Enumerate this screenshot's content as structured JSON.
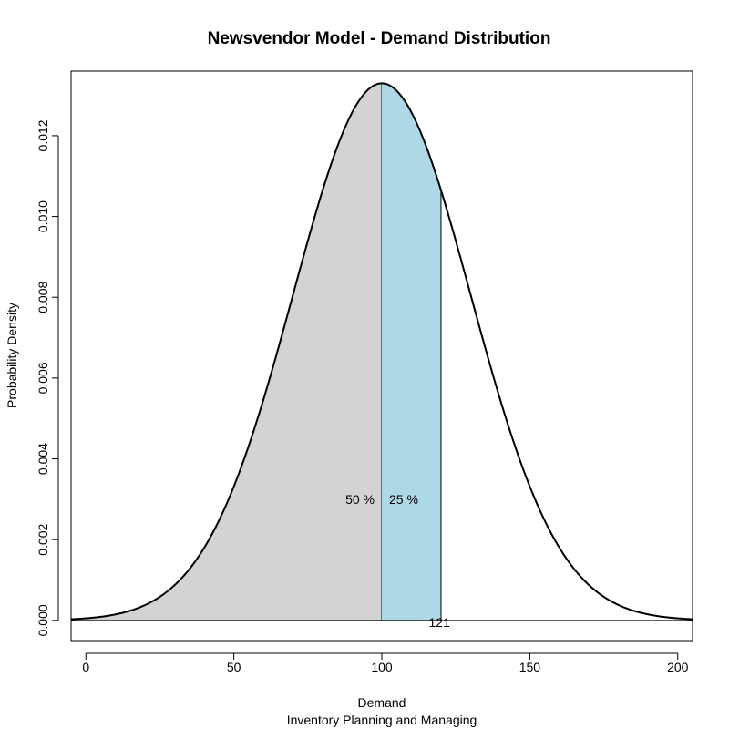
{
  "chart_data": {
    "type": "area",
    "title": "Newsvendor Model - Demand Distribution",
    "xlabel": "Demand",
    "subtitle": "Inventory Planning and Managing",
    "ylabel": "Probability Density",
    "distribution": {
      "family": "normal",
      "mean": 100,
      "sd": 30
    },
    "xlim": [
      -5,
      205
    ],
    "ylim": [
      -0.0005,
      0.0136
    ],
    "x_ticks": [
      "0",
      "50",
      "100",
      "150",
      "200"
    ],
    "y_ticks": [
      "0.000",
      "0.002",
      "0.004",
      "0.006",
      "0.008",
      "0.010",
      "0.012"
    ],
    "regions": [
      {
        "from": -5,
        "to": 100,
        "label": "50 %",
        "color": "#d3d3d3"
      },
      {
        "from": 100,
        "to": 120,
        "label": "25 %",
        "color": "#add8e6"
      }
    ],
    "marker": {
      "x": 121,
      "label": "121"
    },
    "grid": false,
    "legend": "none"
  }
}
